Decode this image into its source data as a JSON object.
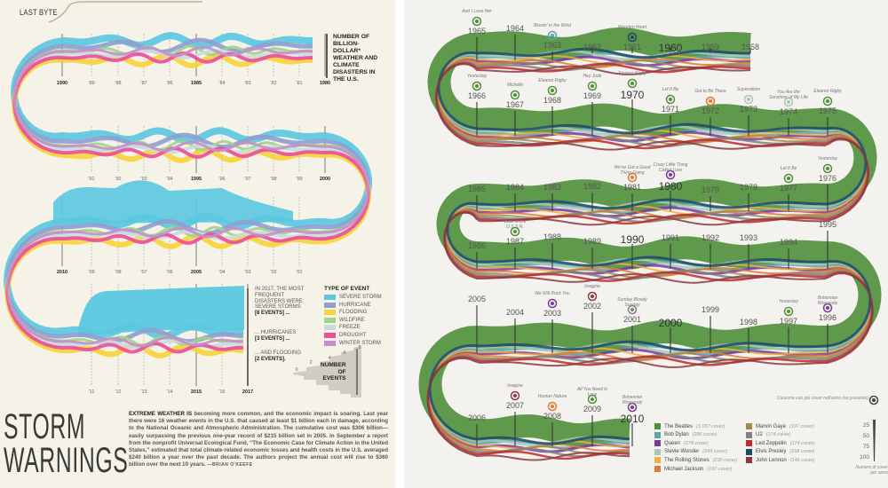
{
  "left": {
    "section_label": "LAST BYTE",
    "chart_title_lines": [
      "NUMBER OF",
      "BILLION-",
      "DOLLAR*",
      "WEATHER AND",
      "CLIMATE",
      "DISASTERS IN",
      "THE U.S."
    ],
    "headline_lines": [
      "STORM",
      "WARNINGS"
    ],
    "body": {
      "lead": "EXTREME WEATHER IS",
      "text": " becoming more common, and the economic impact is soaring. Last year there were 16 weather events in the U.S. that caused at least $1 billion each in damage, according to the National Oceanic and Atmospheric Administration. The cumulative cost was $306 billion—easily surpassing the previous one-year record of $215 billion set in 2005. In September a report from the nonprofit Universal Ecological Fund, “The Economic Case for Climate Action in the United States,” estimated that total climate-related economic losses and health costs in the U.S. averaged $240 billion a year over the past decade. The authors project the annual cost will rise to $360 billion over the next 10 years.",
      "byline": " —BRIAN O'KEEFE"
    },
    "annotations": {
      "intro": "IN 2017, THE MOST FREQUENT DISASTERS WERE:",
      "a1_text": "SEVERE STORMS",
      "a1_count": "[8 EVENTS] ...",
      "a2_text": "... HURRICANES",
      "a2_count": "[3 EVENTS] ...",
      "a3_text": "... AND FLOODING",
      "a3_count": "[2 EVENTS]."
    },
    "legend_title": "TYPE OF EVENT",
    "size_scale_label_lines": [
      "NUMBER",
      "OF",
      "EVENTS"
    ]
  },
  "right": {
    "legend_note": "Canzone con più cover nell'anno (se presente)",
    "scale_note_lines": [
      "Numero di cover",
      "per anno"
    ]
  },
  "chart_data": [
    {
      "type": "area",
      "title": "NUMBER OF BILLION-DOLLAR* WEATHER AND CLIMATE DISASTERS IN THE U.S.",
      "x_range": [
        1980,
        2017
      ],
      "series": [
        {
          "name": "SEVERE STORM",
          "color": "#5bc8e0",
          "value_2017": 8
        },
        {
          "name": "HURRICANE",
          "color": "#8f9fd0",
          "value_2017": 3
        },
        {
          "name": "FLOODING",
          "color": "#f9d33a",
          "value_2017": 2
        },
        {
          "name": "WILDFIRE",
          "color": "#9fd48a"
        },
        {
          "name": "FREEZE",
          "color": "#c8dce0"
        },
        {
          "name": "DROUGHT",
          "color": "#ec4f9a"
        },
        {
          "name": "WINTER STORM",
          "color": "#c490c8"
        }
      ],
      "tick_rows": [
        [
          "1990",
          "'89",
          "'88",
          "'87",
          "'86",
          "1985",
          "'84",
          "'83",
          "'82",
          "'81",
          "1980"
        ],
        [
          "'91",
          "'92",
          "'93",
          "'94",
          "1995",
          "'96",
          "'97",
          "'98",
          "'99",
          "2000"
        ],
        [
          "2010",
          "'09",
          "'08",
          "'07",
          "'06",
          "2005",
          "'04",
          "'03",
          "'02",
          "'01"
        ],
        [
          "'11",
          "'12",
          "'13",
          "'14",
          "2015",
          "'16",
          "2017"
        ]
      ],
      "size_scale_ticks": [
        "0",
        "2",
        "4",
        "6",
        "8"
      ]
    },
    {
      "type": "area",
      "x_range": [
        1958,
        2010
      ],
      "series": [
        {
          "name": "The Beatles",
          "covers": "(1.657 cover)",
          "color": "#4f8f3a"
        },
        {
          "name": "Bob Dylan",
          "covers": "(286 cover)",
          "color": "#5aa5a8"
        },
        {
          "name": "Queen",
          "covers": "(278 cover)",
          "color": "#7a3a9a"
        },
        {
          "name": "Stevie Wonder",
          "covers": "(249 cover)",
          "color": "#a8c8b8"
        },
        {
          "name": "The Rolling Stones",
          "covers": "(230 cover)",
          "color": "#f0b040"
        },
        {
          "name": "Michael Jackson",
          "covers": "(197 cover)",
          "color": "#e07a30"
        },
        {
          "name": "Marvin Gaye",
          "covers": "(197 cover)",
          "color": "#a08850"
        },
        {
          "name": "U2",
          "covers": "(174 cover)",
          "color": "#808080"
        },
        {
          "name": "Led Zeppelin",
          "covers": "(174 cover)",
          "color": "#c02a2a"
        },
        {
          "name": "Elvis Presley",
          "covers": "(168 cover)",
          "color": "#1a4a6a"
        },
        {
          "name": "John Lennon",
          "covers": "(146 cover)",
          "color": "#8a3a40"
        }
      ],
      "tick_rows": [
        [
          "1965",
          "1964",
          "1963",
          "1962",
          "1961",
          "1960",
          "1959",
          "1958"
        ],
        [
          "1966",
          "1967",
          "1968",
          "1969",
          "1970",
          "1971",
          "1972",
          "1973",
          "1974",
          "1975"
        ],
        [
          "1985",
          "1984",
          "1983",
          "1982",
          "1981",
          "1980",
          "1979",
          "1978",
          "1977",
          "1976"
        ],
        [
          "1986",
          "1987",
          "1988",
          "1989",
          "1990",
          "1991",
          "1992",
          "1993",
          "1994",
          "1995"
        ],
        [
          "2005",
          "2004",
          "2003",
          "2002",
          "2001",
          "2000",
          "1999",
          "1998",
          "1997",
          "1996"
        ],
        [
          "2006",
          "2007",
          "2008",
          "2009",
          "2010"
        ]
      ],
      "top_songs": [
        {
          "year": "1965",
          "song": "And I Love Her",
          "artist": "The Beatles"
        },
        {
          "year": "1963",
          "song": "Blowin' in the Wind",
          "artist": "Bob Dylan"
        },
        {
          "year": "1961",
          "song": "Wooden Heart",
          "artist": "Elvis Presley"
        },
        {
          "year": "1966",
          "song": "Yesterday",
          "artist": "The Beatles"
        },
        {
          "year": "1967",
          "song": "Michelle",
          "artist": "The Beatles"
        },
        {
          "year": "1968",
          "song": "Eleanor Rigby",
          "artist": "The Beatles"
        },
        {
          "year": "1969",
          "song": "Hey Jude",
          "artist": "The Beatles"
        },
        {
          "year": "1970",
          "song": "Eleanor Rigby",
          "artist": "The Beatles"
        },
        {
          "year": "1971",
          "song": "Let It Be",
          "artist": "The Beatles"
        },
        {
          "year": "1972",
          "song": "Got to Be There",
          "artist": "Michael Jackson"
        },
        {
          "year": "1973",
          "song": "Superstition",
          "artist": "Stevie Wonder"
        },
        {
          "year": "1974",
          "song": "You Are the Sunshine of My Life",
          "artist": "Stevie Wonder"
        },
        {
          "year": "1975",
          "song": "Eleanor Rigby",
          "artist": "The Beatles"
        },
        {
          "year": "1976",
          "song": "Yesterday",
          "artist": "The Beatles"
        },
        {
          "year": "1977",
          "song": "Let It Be",
          "artist": "The Beatles"
        },
        {
          "year": "1980",
          "song": "Crazy Little Thing Called Love",
          "artist": "Queen"
        },
        {
          "year": "1981",
          "song": "We've Got a Good Thing Going",
          "artist": "Michael Jackson"
        },
        {
          "year": "1987",
          "song": "Back in the U.S.S.R.",
          "artist": "The Beatles"
        },
        {
          "year": "1996",
          "song": "Bohemian Rhapsody",
          "artist": "Queen"
        },
        {
          "year": "1997",
          "song": "Yesterday",
          "artist": "The Beatles"
        },
        {
          "year": "2001",
          "song": "Sunday Bloody Sunday",
          "artist": "U2"
        },
        {
          "year": "2002",
          "song": "Imagine",
          "artist": "John Lennon"
        },
        {
          "year": "2003",
          "song": "We Will Rock You",
          "artist": "Queen"
        },
        {
          "year": "2007",
          "song": "Imagine",
          "artist": "John Lennon"
        },
        {
          "year": "2008",
          "song": "Human Nature",
          "artist": "Michael Jackson"
        },
        {
          "year": "2009",
          "song": "All You Need Is Love",
          "artist": "The Beatles"
        },
        {
          "year": "2010",
          "song": "Bohemian Rhapsody",
          "artist": "Queen"
        }
      ],
      "size_scale_ticks": [
        "25",
        "50",
        "75",
        "100"
      ]
    }
  ]
}
